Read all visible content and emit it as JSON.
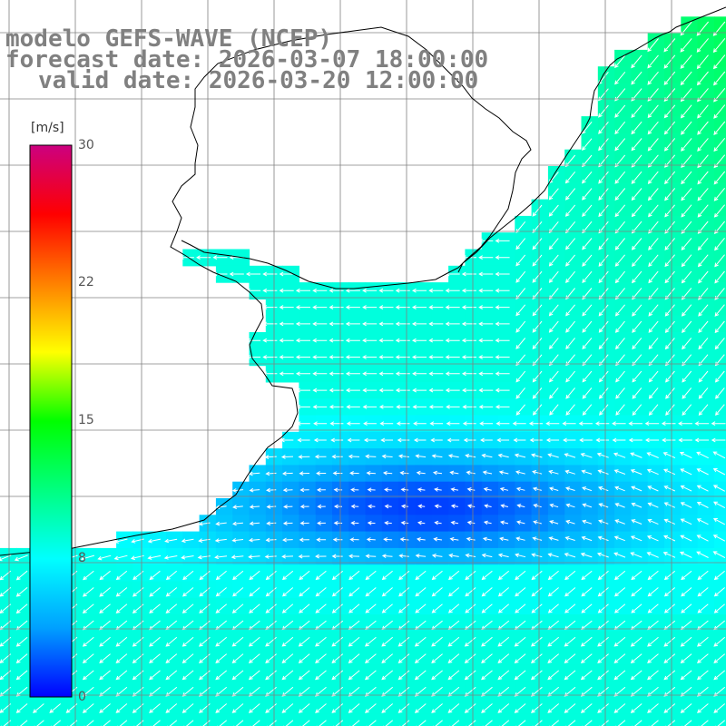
{
  "header": {
    "line1": "modelo GEFS-WAVE (NCEP)",
    "line2": "forecast date: 2026-03-07 18:00:00",
    "line3": "valid date: 2026-03-20 12:00:00"
  },
  "colorbar": {
    "unit": "[m/s]",
    "ticks": [
      "30",
      "22",
      "15",
      "8",
      "0"
    ],
    "tick_values": [
      30,
      22,
      15,
      8,
      0
    ],
    "min": 0,
    "max": 30,
    "colors": [
      "#0000ff",
      "#00a0ff",
      "#00ffff",
      "#00ff80",
      "#00ff00",
      "#ffff00",
      "#ff8000",
      "#ff0000",
      "#cc0080"
    ]
  },
  "colors": {
    "land": "#ffffff",
    "coast": "#000000",
    "grid": "#808080",
    "arrows": "#ffffff"
  }
}
